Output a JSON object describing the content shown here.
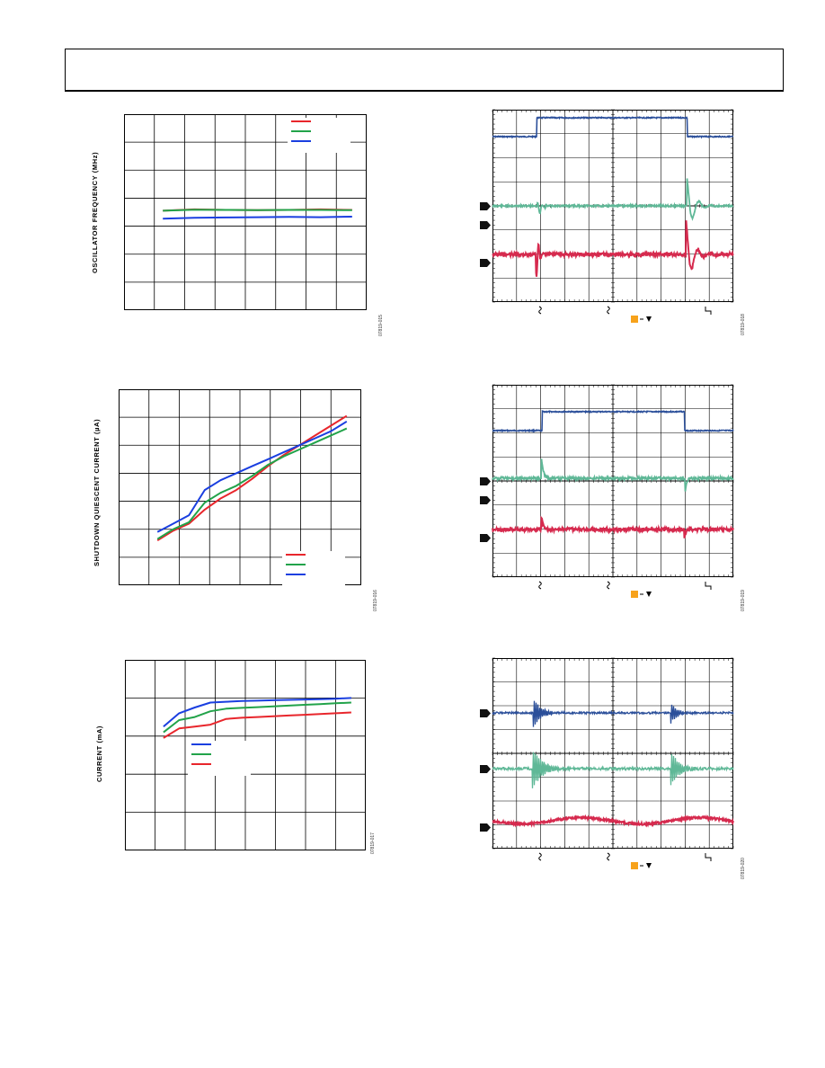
{
  "chart_data": [
    {
      "type": "line",
      "ylabel": "OSCILLATOR FREQUENCY (MHz)",
      "figure_id": "07819-015",
      "grid": true,
      "legend": "top-right",
      "x": [
        0,
        1,
        2,
        3,
        4,
        5,
        6
      ],
      "ylim": [
        0,
        7
      ],
      "series": [
        {
          "color": "#e8262c",
          "values": [
            3.55,
            3.6,
            3.58,
            3.57,
            3.58,
            3.6,
            3.58
          ]
        },
        {
          "color": "#22a34a",
          "values": [
            3.55,
            3.59,
            3.58,
            3.57,
            3.58,
            3.58,
            3.57
          ]
        },
        {
          "color": "#1a3fe0",
          "values": [
            3.27,
            3.3,
            3.31,
            3.32,
            3.33,
            3.32,
            3.34
          ]
        }
      ]
    },
    {
      "type": "line",
      "ylabel": "SHUTDOWN QUIESCENT CURRENT (µA)",
      "figure_id": "07819-016",
      "grid": true,
      "legend": "bottom-right",
      "x": [
        0,
        0.5,
        1,
        1.5,
        2,
        2.5,
        3,
        3.5,
        4,
        4.5,
        5,
        5.5,
        6
      ],
      "ylim": [
        0,
        7
      ],
      "series": [
        {
          "color": "#e8262c",
          "values": [
            1.6,
            1.95,
            2.2,
            2.7,
            3.1,
            3.4,
            3.8,
            4.25,
            4.65,
            5.0,
            5.35,
            5.7,
            6.05
          ]
        },
        {
          "color": "#22a34a",
          "values": [
            1.65,
            2.0,
            2.25,
            2.95,
            3.3,
            3.55,
            3.9,
            4.3,
            4.6,
            4.85,
            5.1,
            5.35,
            5.6
          ]
        },
        {
          "color": "#1a3fe0",
          "values": [
            1.9,
            2.2,
            2.5,
            3.4,
            3.75,
            4.0,
            4.25,
            4.5,
            4.75,
            5.0,
            5.25,
            5.5,
            5.85
          ]
        }
      ]
    },
    {
      "type": "line",
      "ylabel": "CURRENT (mA)",
      "figure_id": "07819-017",
      "grid": true,
      "legend": "bottom-left",
      "x": [
        0,
        0.5,
        1,
        1.5,
        2,
        2.5,
        3,
        3.5,
        4,
        4.5,
        5,
        5.5,
        6
      ],
      "ylim": [
        0,
        5
      ],
      "series": [
        {
          "color": "#1a3fe0",
          "values": [
            3.25,
            3.6,
            3.75,
            3.88,
            3.9,
            3.92,
            3.93,
            3.94,
            3.95,
            3.96,
            3.97,
            3.98,
            4.0
          ]
        },
        {
          "color": "#22a34a",
          "values": [
            3.1,
            3.42,
            3.5,
            3.65,
            3.72,
            3.74,
            3.76,
            3.78,
            3.8,
            3.82,
            3.84,
            3.86,
            3.88
          ]
        },
        {
          "color": "#e8262c",
          "values": [
            2.95,
            3.2,
            3.25,
            3.3,
            3.45,
            3.48,
            3.5,
            3.52,
            3.54,
            3.56,
            3.58,
            3.6,
            3.62
          ]
        }
      ]
    }
  ],
  "scopes": [
    {
      "figure_id": "07819-018"
    },
    {
      "figure_id": "07819-019"
    },
    {
      "figure_id": "07819-020"
    }
  ],
  "colors": {
    "blue": "#2b4f9a",
    "teal": "#5fb897",
    "red": "#d62a4e",
    "orange": "#f7a21b"
  }
}
